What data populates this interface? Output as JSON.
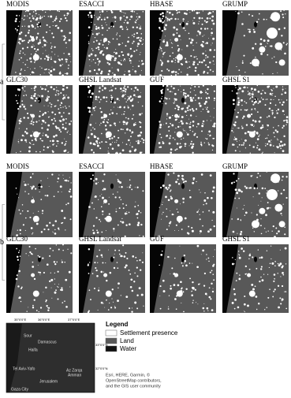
{
  "sections": [
    {
      "label": "a",
      "panels": [
        "MODIS",
        "ESACCI",
        "HBASE",
        "GRUMP",
        "GLC30",
        "GHSL Landsat",
        "GUF",
        "GHSL S1"
      ]
    },
    {
      "label": "b",
      "panels": [
        "MODIS",
        "ESACCI",
        "HBASE",
        "GRUMP",
        "GLC30",
        "GHSL Landsat",
        "GUF",
        "GHSL S1"
      ]
    }
  ],
  "legend": {
    "title": "Legend",
    "items": [
      "Settlement presence",
      "Land",
      "Water"
    ]
  },
  "inset": {
    "x_coords": [
      "35°0'0\"E",
      "36°0'0\"E",
      "37°0'0\"E"
    ],
    "y_coords": [
      "33°0'0\"N",
      "32°0'0\"N"
    ],
    "places": [
      "Sour",
      "Damascus",
      "Haifa",
      "Tel Aviv-Yafo",
      "Az Zarqa",
      "Amman",
      "Jerusalem",
      "Gaza City"
    ],
    "credit": [
      "Esri, HERE, Garmin, ©",
      "OpenStreetMap contributors,",
      "and the GIS user community"
    ]
  }
}
